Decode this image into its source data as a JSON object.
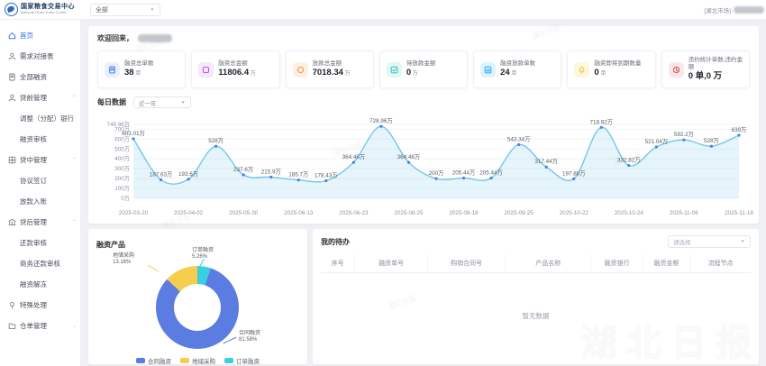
{
  "header": {
    "brand_title": "国家粮食交易中心",
    "brand_subtitle": "National Grain Trade Center",
    "scope_select_value": "全部",
    "market_tag": "[湖北市场]"
  },
  "sidebar": {
    "items": [
      {
        "label": "首页",
        "icon": "home-icon",
        "active": true,
        "children": []
      },
      {
        "label": "需求对接表",
        "icon": "user-icon",
        "children": []
      },
      {
        "label": "全部融资",
        "icon": "doc-icon",
        "children": []
      },
      {
        "label": "贷前管理",
        "icon": "user-icon",
        "expandable": true,
        "expanded": true,
        "children": [
          "调整（分配）银行",
          "融资审核"
        ]
      },
      {
        "label": "贷中管理",
        "icon": "grid-icon",
        "expandable": true,
        "expanded": true,
        "children": [
          "协议签订",
          "放款入账"
        ]
      },
      {
        "label": "贷后管理",
        "icon": "bank-icon",
        "expandable": true,
        "expanded": true,
        "children": [
          "还款审核",
          "商务还款审核",
          "融资解冻"
        ]
      },
      {
        "label": "特殊处理",
        "icon": "pin-icon",
        "children": []
      },
      {
        "label": "仓单管理",
        "icon": "folder-icon",
        "expandable": true,
        "expanded": false,
        "children": []
      }
    ]
  },
  "main": {
    "welcome_label": "欢迎回来，",
    "stats": [
      {
        "icon": "doc-icon",
        "label": "融资总单数",
        "value": "38",
        "unit": "单",
        "color": "#4e7ce9",
        "bg": "#e8f0fe"
      },
      {
        "icon": "square-icon",
        "label": "融资总金额",
        "value": "11806.4",
        "unit": "万",
        "color": "#b55fe0",
        "bg": "#f5e7fc"
      },
      {
        "icon": "circle-icon",
        "label": "放款总金额",
        "value": "7018.34",
        "unit": "万",
        "color": "#f59a54",
        "bg": "#fdf0e3"
      },
      {
        "icon": "check-icon",
        "label": "待放款金额",
        "value": "0",
        "unit": "万",
        "color": "#43c5bf",
        "bg": "#e2f7f5"
      },
      {
        "icon": "chart-icon",
        "label": "融资放款单数",
        "value": "24",
        "unit": "单",
        "color": "#35b3ee",
        "bg": "#def2fd"
      },
      {
        "icon": "bell-icon",
        "label": "融资即将到期数量",
        "value": "0",
        "unit": "单",
        "color": "#f2cf4a",
        "bg": "#fdf7dd"
      },
      {
        "icon": "clock-icon",
        "label": "违约统计单数,违约金额",
        "value": "0 单,0 万",
        "unit": "",
        "color": "#e25757",
        "bg": "#fbe7e7"
      }
    ],
    "daily_title": "每日数据",
    "daily_range_value": "近一年",
    "pie_title": "融资产品",
    "todo": {
      "title": "我的待办",
      "filter_value": "请选择",
      "columns": [
        "序号",
        "融资单号",
        "购销合同号",
        "产品名称",
        "融资银行",
        "融资金额",
        "流程节点"
      ],
      "empty_text": "暂无数据"
    }
  },
  "chart_data": [
    {
      "type": "line",
      "title": "每日数据",
      "unit": "万",
      "values": [
        603.01,
        187.63,
        193.6,
        528,
        237.6,
        215.9,
        185.7,
        178.43,
        364.48,
        728.96,
        364.48,
        200,
        205.44,
        205.44,
        543.34,
        317.44,
        197.88,
        718.92,
        332.82,
        521.04,
        592.2,
        528,
        639
      ],
      "x_labels": [
        "2025-03-20",
        "2025-04-02",
        "2025-05-30",
        "2025-06-13",
        "2025-06-23",
        "2025-06-25",
        "2025-08-18",
        "2025-09-25",
        "2025-10-22",
        "2025-10-24",
        "2025-11-06",
        "2025-11-18"
      ],
      "x_label_every": 2,
      "y_ticks": [
        748.96,
        700,
        600,
        500,
        400,
        300,
        200,
        100,
        0
      ],
      "ylim": [
        0,
        748.96
      ],
      "line_color": "#74c6eb",
      "point_color": "#4d7ee3",
      "area_color": "rgba(116,198,235,0.18)",
      "grid": true
    },
    {
      "type": "pie",
      "title": "融资产品",
      "slices": [
        {
          "name": "合同融资",
          "percent": 81.58,
          "color": "#5b7ce0"
        },
        {
          "name": "地储采购",
          "percent": 13.16,
          "color": "#f6cd4c"
        },
        {
          "name": "订单融资",
          "percent": 5.26,
          "color": "#39cfe0"
        }
      ],
      "legend": [
        "合同融资",
        "地储采购",
        "订单融资"
      ],
      "legend_position": "bottom",
      "start_angle_deg": 19
    }
  ],
  "watermark": {
    "text": "湖北日报"
  }
}
